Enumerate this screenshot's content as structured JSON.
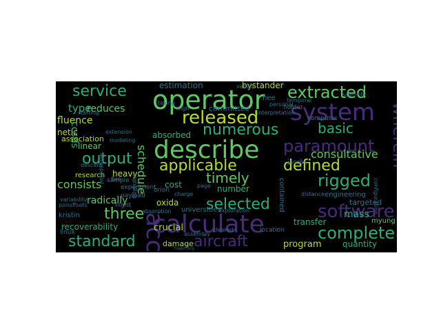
{
  "wordcloud": {
    "colors": {
      "background": "#000000",
      "purple": "#472c7a",
      "teal": "#2c728e",
      "green": "#28ae80",
      "lime": "#5ec962",
      "yellow": "#b5de2b",
      "blue": "#3b528b"
    },
    "words": [
      {
        "text": "operator"
      },
      {
        "text": "system"
      },
      {
        "text": "describe"
      },
      {
        "text": "calculate"
      },
      {
        "text": "extracted"
      },
      {
        "text": "service"
      },
      {
        "text": "released"
      },
      {
        "text": "numerous"
      },
      {
        "text": "paramount"
      },
      {
        "text": "applicable"
      },
      {
        "text": "defined"
      },
      {
        "text": "output"
      },
      {
        "text": "according"
      },
      {
        "text": "timely"
      },
      {
        "text": "rigged"
      },
      {
        "text": "selected"
      },
      {
        "text": "software"
      },
      {
        "text": "three"
      },
      {
        "text": "aircraft"
      },
      {
        "text": "standard"
      },
      {
        "text": "complete"
      },
      {
        "text": "wherein"
      },
      {
        "text": "basic"
      },
      {
        "text": "consultative"
      },
      {
        "text": "consists"
      },
      {
        "text": "type"
      },
      {
        "text": "schedule"
      },
      {
        "text": "estimation"
      },
      {
        "text": "fluence"
      },
      {
        "text": "ccsds"
      },
      {
        "text": "reduces"
      },
      {
        "text": "linear"
      },
      {
        "text": "netic"
      },
      {
        "text": "association"
      },
      {
        "text": "committee"
      },
      {
        "text": "absorbed"
      },
      {
        "text": "bystander"
      },
      {
        "text": "radically"
      },
      {
        "text": "recoverability"
      },
      {
        "text": "crucial"
      },
      {
        "text": "transfer"
      },
      {
        "text": "program"
      },
      {
        "text": "quantity"
      },
      {
        "text": "damage"
      },
      {
        "text": "cost"
      },
      {
        "text": "heavy"
      },
      {
        "text": "number"
      },
      {
        "text": "oxida"
      },
      {
        "text": "mass"
      },
      {
        "text": "myung"
      },
      {
        "text": "targeted"
      },
      {
        "text": "research"
      },
      {
        "text": "engineering"
      },
      {
        "text": "contained"
      },
      {
        "text": "universities"
      },
      {
        "text": "experiment"
      },
      {
        "text": "kristin"
      },
      {
        "text": "linux"
      },
      {
        "text": "sample"
      },
      {
        "text": "payload"
      },
      {
        "text": "flight"
      },
      {
        "text": "orion"
      },
      {
        "text": "location"
      },
      {
        "text": "jacobs"
      },
      {
        "text": "hee"
      },
      {
        "text": "holder"
      },
      {
        "text": "computer"
      },
      {
        "text": "personal"
      },
      {
        "text": "temporal"
      },
      {
        "text": "page"
      },
      {
        "text": "distance"
      },
      {
        "text": "absorption"
      },
      {
        "text": "interpretation"
      },
      {
        "text": "scientific"
      },
      {
        "text": "vehicle"
      },
      {
        "text": "extension"
      },
      {
        "text": "modeling"
      },
      {
        "text": "starting"
      },
      {
        "text": "taking"
      },
      {
        "text": "descent"
      },
      {
        "text": "variability"
      },
      {
        "text": "exploration"
      },
      {
        "text": "configuration"
      },
      {
        "text": "signaling"
      },
      {
        "text": "assembly"
      },
      {
        "text": "ponoffsets"
      },
      {
        "text": "cleared"
      },
      {
        "text": "charge"
      },
      {
        "text": "trajectory"
      },
      {
        "text": "aerospatial"
      },
      {
        "text": "high"
      },
      {
        "text": "five"
      }
    ]
  }
}
